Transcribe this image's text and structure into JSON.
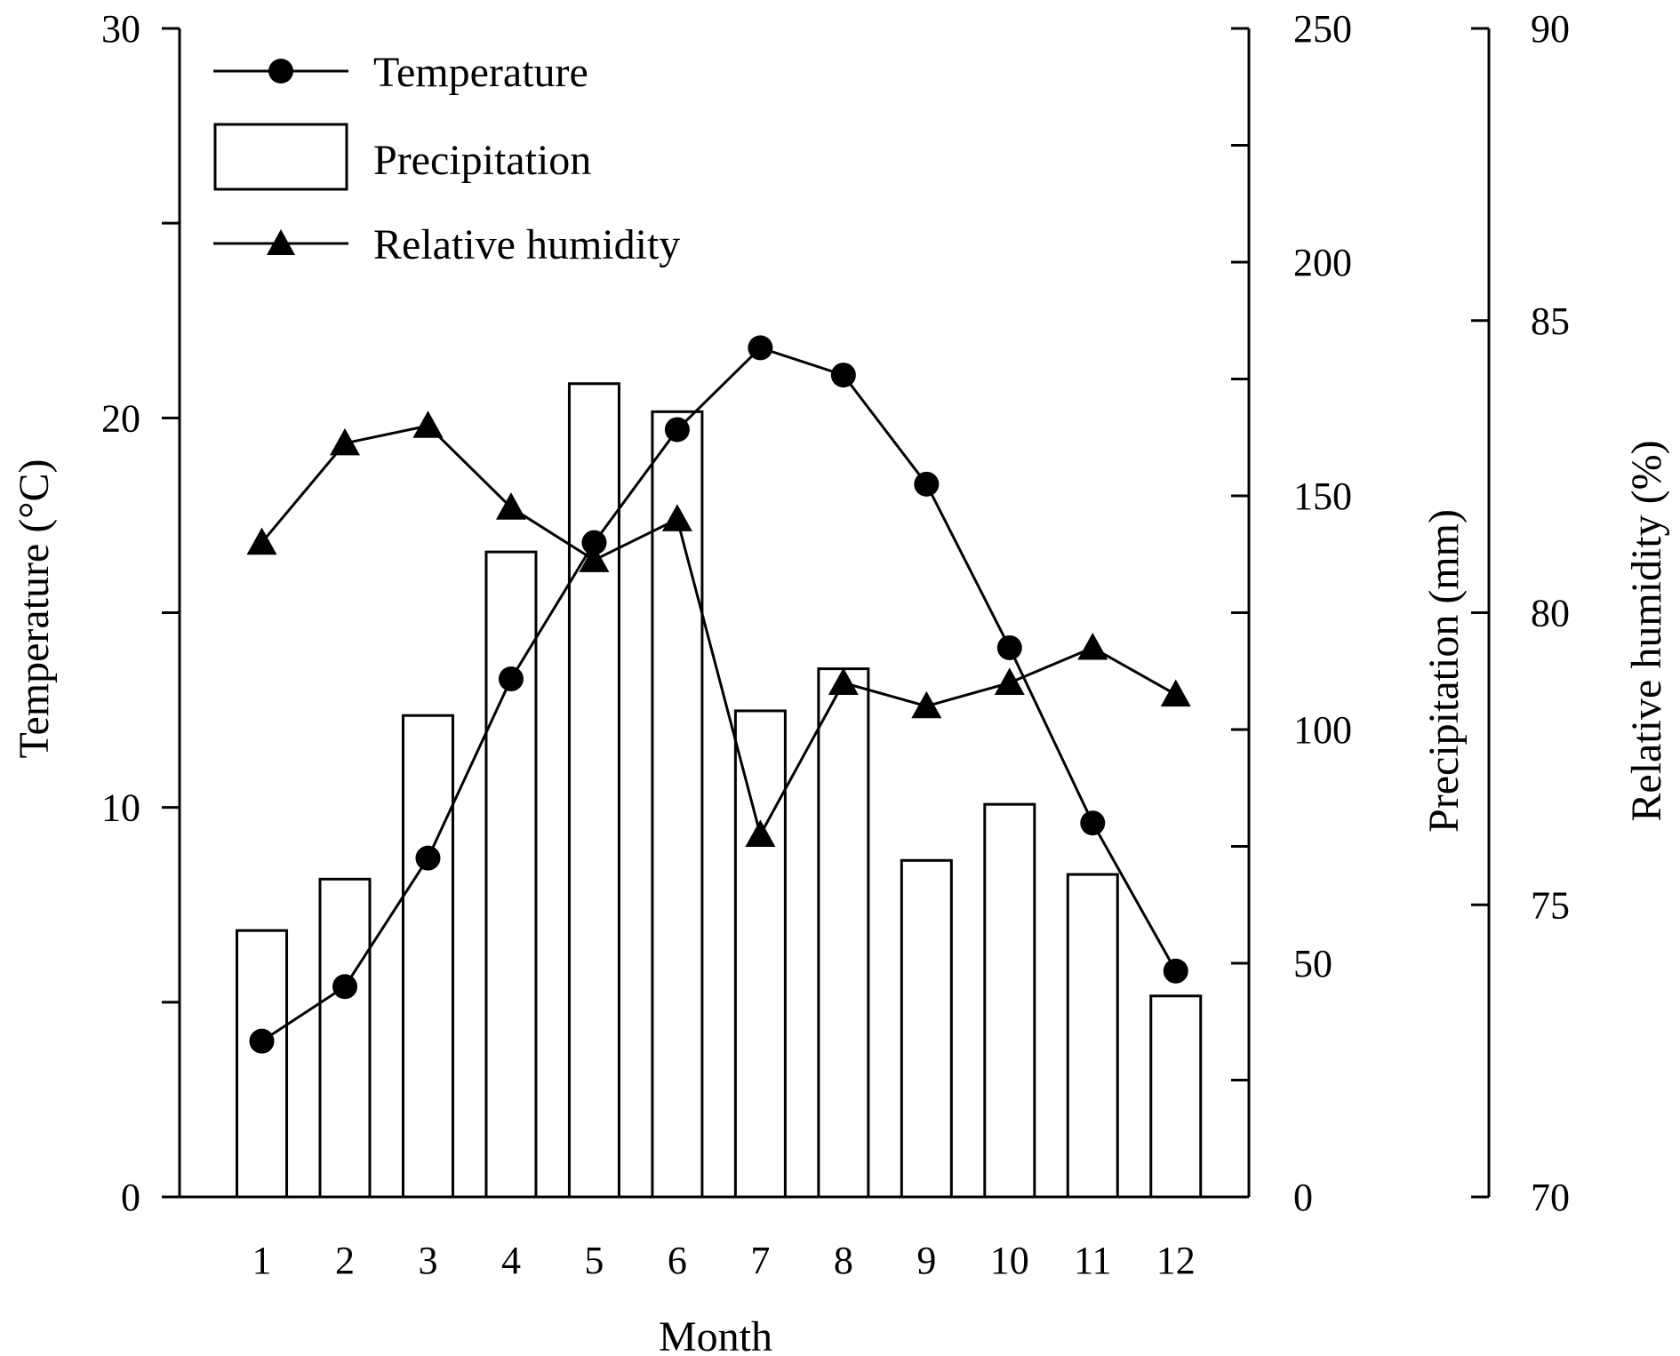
{
  "chart_data": {
    "type": "bar",
    "categories": [
      "1",
      "2",
      "3",
      "4",
      "5",
      "6",
      "7",
      "8",
      "9",
      "10",
      "11",
      "12"
    ],
    "xlabel": "Month",
    "series": [
      {
        "name": "Precipitation",
        "type": "bar",
        "axis": "Precipitation (mm)",
        "values": [
          57,
          68,
          103,
          138,
          174,
          168,
          104,
          113,
          72,
          84,
          69,
          43
        ]
      },
      {
        "name": "Temperature",
        "type": "line",
        "marker": "circle",
        "axis": "Temperature (°C)",
        "values": [
          4.0,
          5.4,
          8.7,
          13.3,
          16.8,
          19.7,
          21.8,
          21.1,
          18.3,
          14.1,
          9.6,
          5.8
        ]
      },
      {
        "name": "Relative humidity",
        "type": "line",
        "marker": "triangle",
        "axis": "Relative humidity (%)",
        "values": [
          81.2,
          82.9,
          83.2,
          81.8,
          80.9,
          81.6,
          76.2,
          78.8,
          78.4,
          78.8,
          79.4,
          78.6
        ]
      }
    ],
    "axes": {
      "temperature": {
        "label": "Temperature (°C)",
        "range": [
          0,
          30
        ],
        "ticks": [
          "0",
          "10",
          "20",
          "30"
        ]
      },
      "precipitation": {
        "label": "Precipitation (mm)",
        "range": [
          0,
          250
        ],
        "ticks": [
          "0",
          "50",
          "100",
          "150",
          "200",
          "250"
        ]
      },
      "humidity": {
        "label": "Relative humidity (%)",
        "range": [
          70,
          90
        ],
        "ticks": [
          "70",
          "75",
          "80",
          "85",
          "90"
        ]
      }
    },
    "legend": {
      "position": "top-left",
      "entries": [
        "Temperature",
        "Precipitation",
        "Relative humidity"
      ]
    },
    "grid": false,
    "colors": {
      "line": "#000000",
      "bar_fill": "#ffffff",
      "bar_stroke": "#000000"
    }
  }
}
